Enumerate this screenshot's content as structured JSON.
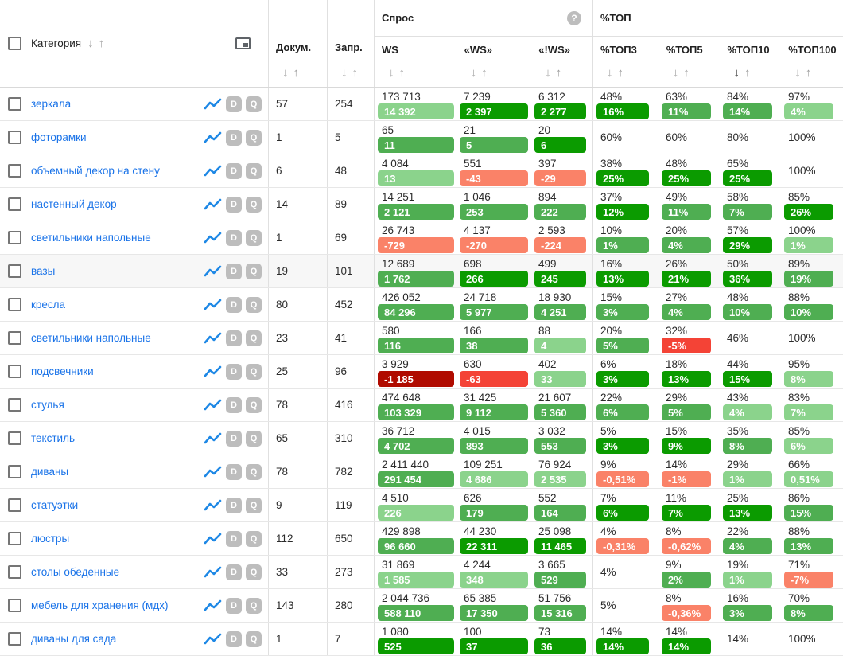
{
  "header": {
    "category": "Категория",
    "docs": "Докум.",
    "queries": "Запр.",
    "demand_group": "Спрос",
    "top_group": "%ТОП",
    "sub_columns": [
      "WS",
      "«WS»",
      "«!WS»",
      "%ТОП3",
      "%ТОП5",
      "%ТОП10",
      "%ТОП100"
    ],
    "sort_down": "↓",
    "sort_up": "↑",
    "active_sort_column": "%ТОП10",
    "help_icon": "?"
  },
  "row_buttons": {
    "chart": "chart-line",
    "d": "D",
    "q": "Q"
  },
  "colors": {
    "badge_green_light": "#8bd38c",
    "badge_green_mid": "#4fae52",
    "badge_green_dark": "#0b9b00",
    "badge_salmon": "#fa8268",
    "badge_red": "#f44336",
    "badge_dark_red": "#b00b00",
    "link_blue": "#1a73e8",
    "chart_icon_blue": "#1e88e5",
    "button_gray": "#bdbdbd"
  },
  "rows": [
    {
      "category": "зеркала",
      "docs": "57",
      "queries": "254",
      "highlight": false,
      "metrics": [
        {
          "v": "173 713",
          "b": "14 392",
          "t": "light"
        },
        {
          "v": "7 239",
          "b": "2 397",
          "t": "dark"
        },
        {
          "v": "6 312",
          "b": "2 277",
          "t": "dark"
        },
        {
          "v": "48%",
          "b": "16%",
          "t": "dark"
        },
        {
          "v": "63%",
          "b": "11%",
          "t": "mid"
        },
        {
          "v": "84%",
          "b": "14%",
          "t": "mid"
        },
        {
          "v": "97%",
          "b": "4%",
          "t": "light"
        }
      ]
    },
    {
      "category": "фоторамки",
      "docs": "1",
      "queries": "5",
      "highlight": false,
      "metrics": [
        {
          "v": "65",
          "b": "11",
          "t": "mid"
        },
        {
          "v": "21",
          "b": "5",
          "t": "mid"
        },
        {
          "v": "20",
          "b": "6",
          "t": "dark"
        },
        {
          "v": "60%",
          "b": null
        },
        {
          "v": "60%",
          "b": null
        },
        {
          "v": "80%",
          "b": null
        },
        {
          "v": "100%",
          "b": null
        }
      ]
    },
    {
      "category": "объемный декор на стену",
      "docs": "6",
      "queries": "48",
      "highlight": false,
      "metrics": [
        {
          "v": "4 084",
          "b": "13",
          "t": "light"
        },
        {
          "v": "551",
          "b": "-43",
          "t": "salmon"
        },
        {
          "v": "397",
          "b": "-29",
          "t": "salmon"
        },
        {
          "v": "38%",
          "b": "25%",
          "t": "dark"
        },
        {
          "v": "48%",
          "b": "25%",
          "t": "dark"
        },
        {
          "v": "65%",
          "b": "25%",
          "t": "dark"
        },
        {
          "v": "100%",
          "b": null
        }
      ]
    },
    {
      "category": "настенный декор",
      "docs": "14",
      "queries": "89",
      "highlight": false,
      "metrics": [
        {
          "v": "14 251",
          "b": "2 121",
          "t": "mid"
        },
        {
          "v": "1 046",
          "b": "253",
          "t": "mid"
        },
        {
          "v": "894",
          "b": "222",
          "t": "mid"
        },
        {
          "v": "37%",
          "b": "12%",
          "t": "dark"
        },
        {
          "v": "49%",
          "b": "11%",
          "t": "mid"
        },
        {
          "v": "58%",
          "b": "7%",
          "t": "mid"
        },
        {
          "v": "85%",
          "b": "26%",
          "t": "dark"
        }
      ]
    },
    {
      "category": "светильники напольные",
      "docs": "1",
      "queries": "69",
      "highlight": false,
      "metrics": [
        {
          "v": "26 743",
          "b": "-729",
          "t": "salmon"
        },
        {
          "v": "4 137",
          "b": "-270",
          "t": "salmon"
        },
        {
          "v": "2 593",
          "b": "-224",
          "t": "salmon"
        },
        {
          "v": "10%",
          "b": "1%",
          "t": "mid"
        },
        {
          "v": "20%",
          "b": "4%",
          "t": "mid"
        },
        {
          "v": "57%",
          "b": "29%",
          "t": "dark"
        },
        {
          "v": "100%",
          "b": "1%",
          "t": "light"
        }
      ]
    },
    {
      "category": "вазы",
      "docs": "19",
      "queries": "101",
      "highlight": true,
      "metrics": [
        {
          "v": "12 689",
          "b": "1 762",
          "t": "mid"
        },
        {
          "v": "698",
          "b": "266",
          "t": "dark"
        },
        {
          "v": "499",
          "b": "245",
          "t": "dark"
        },
        {
          "v": "16%",
          "b": "13%",
          "t": "dark"
        },
        {
          "v": "26%",
          "b": "21%",
          "t": "dark"
        },
        {
          "v": "50%",
          "b": "36%",
          "t": "dark"
        },
        {
          "v": "89%",
          "b": "19%",
          "t": "mid"
        }
      ]
    },
    {
      "category": "кресла",
      "docs": "80",
      "queries": "452",
      "highlight": false,
      "metrics": [
        {
          "v": "426 052",
          "b": "84 296",
          "t": "mid"
        },
        {
          "v": "24 718",
          "b": "5 977",
          "t": "mid"
        },
        {
          "v": "18 930",
          "b": "4 251",
          "t": "mid"
        },
        {
          "v": "15%",
          "b": "3%",
          "t": "mid"
        },
        {
          "v": "27%",
          "b": "4%",
          "t": "mid"
        },
        {
          "v": "48%",
          "b": "10%",
          "t": "mid"
        },
        {
          "v": "88%",
          "b": "10%",
          "t": "mid"
        }
      ]
    },
    {
      "category": "светильники напольные",
      "docs": "23",
      "queries": "41",
      "highlight": false,
      "metrics": [
        {
          "v": "580",
          "b": "116",
          "t": "mid"
        },
        {
          "v": "166",
          "b": "38",
          "t": "mid"
        },
        {
          "v": "88",
          "b": "4",
          "t": "light"
        },
        {
          "v": "20%",
          "b": "5%",
          "t": "mid"
        },
        {
          "v": "32%",
          "b": "-5%",
          "t": "red"
        },
        {
          "v": "46%",
          "b": null
        },
        {
          "v": "100%",
          "b": null
        }
      ]
    },
    {
      "category": "подсвечники",
      "docs": "25",
      "queries": "96",
      "highlight": false,
      "metrics": [
        {
          "v": "3 929",
          "b": "-1 185",
          "t": "darkred"
        },
        {
          "v": "630",
          "b": "-63",
          "t": "red"
        },
        {
          "v": "402",
          "b": "33",
          "t": "light"
        },
        {
          "v": "6%",
          "b": "3%",
          "t": "dark"
        },
        {
          "v": "18%",
          "b": "13%",
          "t": "dark"
        },
        {
          "v": "44%",
          "b": "15%",
          "t": "dark"
        },
        {
          "v": "95%",
          "b": "8%",
          "t": "light"
        }
      ]
    },
    {
      "category": "стулья",
      "docs": "78",
      "queries": "416",
      "highlight": false,
      "metrics": [
        {
          "v": "474 648",
          "b": "103 329",
          "t": "mid"
        },
        {
          "v": "31 425",
          "b": "9 112",
          "t": "mid"
        },
        {
          "v": "21 607",
          "b": "5 360",
          "t": "mid"
        },
        {
          "v": "22%",
          "b": "6%",
          "t": "mid"
        },
        {
          "v": "29%",
          "b": "5%",
          "t": "mid"
        },
        {
          "v": "43%",
          "b": "4%",
          "t": "light"
        },
        {
          "v": "83%",
          "b": "7%",
          "t": "light"
        }
      ]
    },
    {
      "category": "текстиль",
      "docs": "65",
      "queries": "310",
      "highlight": false,
      "metrics": [
        {
          "v": "36 712",
          "b": "4 702",
          "t": "mid"
        },
        {
          "v": "4 015",
          "b": "893",
          "t": "mid"
        },
        {
          "v": "3 032",
          "b": "553",
          "t": "mid"
        },
        {
          "v": "5%",
          "b": "3%",
          "t": "dark"
        },
        {
          "v": "15%",
          "b": "9%",
          "t": "dark"
        },
        {
          "v": "35%",
          "b": "8%",
          "t": "mid"
        },
        {
          "v": "85%",
          "b": "6%",
          "t": "light"
        }
      ]
    },
    {
      "category": "диваны",
      "docs": "78",
      "queries": "782",
      "highlight": false,
      "metrics": [
        {
          "v": "2 411 440",
          "b": "291 454",
          "t": "mid"
        },
        {
          "v": "109 251",
          "b": "4 686",
          "t": "light"
        },
        {
          "v": "76 924",
          "b": "2 535",
          "t": "light"
        },
        {
          "v": "9%",
          "b": "-0,51%",
          "t": "salmon"
        },
        {
          "v": "14%",
          "b": "-1%",
          "t": "salmon"
        },
        {
          "v": "29%",
          "b": "1%",
          "t": "light"
        },
        {
          "v": "66%",
          "b": "0,51%",
          "t": "light"
        }
      ]
    },
    {
      "category": "статуэтки",
      "docs": "9",
      "queries": "119",
      "highlight": false,
      "metrics": [
        {
          "v": "4 510",
          "b": "226",
          "t": "light"
        },
        {
          "v": "626",
          "b": "179",
          "t": "mid"
        },
        {
          "v": "552",
          "b": "164",
          "t": "mid"
        },
        {
          "v": "7%",
          "b": "6%",
          "t": "dark"
        },
        {
          "v": "11%",
          "b": "7%",
          "t": "dark"
        },
        {
          "v": "25%",
          "b": "13%",
          "t": "dark"
        },
        {
          "v": "86%",
          "b": "15%",
          "t": "mid"
        }
      ]
    },
    {
      "category": "люстры",
      "docs": "112",
      "queries": "650",
      "highlight": false,
      "metrics": [
        {
          "v": "429 898",
          "b": "96 660",
          "t": "mid"
        },
        {
          "v": "44 230",
          "b": "22 311",
          "t": "dark"
        },
        {
          "v": "25 098",
          "b": "11 465",
          "t": "dark"
        },
        {
          "v": "4%",
          "b": "-0,31%",
          "t": "salmon"
        },
        {
          "v": "8%",
          "b": "-0,62%",
          "t": "salmon"
        },
        {
          "v": "22%",
          "b": "4%",
          "t": "mid"
        },
        {
          "v": "88%",
          "b": "13%",
          "t": "mid"
        }
      ]
    },
    {
      "category": "столы обеденные",
      "docs": "33",
      "queries": "273",
      "highlight": false,
      "metrics": [
        {
          "v": "31 869",
          "b": "1 585",
          "t": "light"
        },
        {
          "v": "4 244",
          "b": "348",
          "t": "light"
        },
        {
          "v": "3 665",
          "b": "529",
          "t": "mid"
        },
        {
          "v": "4%",
          "b": null
        },
        {
          "v": "9%",
          "b": "2%",
          "t": "mid"
        },
        {
          "v": "19%",
          "b": "1%",
          "t": "light"
        },
        {
          "v": "71%",
          "b": "-7%",
          "t": "salmon"
        }
      ]
    },
    {
      "category": "мебель для хранения (мдх)",
      "docs": "143",
      "queries": "280",
      "highlight": false,
      "metrics": [
        {
          "v": "2 044 736",
          "b": "588 110",
          "t": "mid"
        },
        {
          "v": "65 385",
          "b": "17 350",
          "t": "mid"
        },
        {
          "v": "51 756",
          "b": "15 316",
          "t": "mid"
        },
        {
          "v": "5%",
          "b": null
        },
        {
          "v": "8%",
          "b": "-0,36%",
          "t": "salmon"
        },
        {
          "v": "16%",
          "b": "3%",
          "t": "mid"
        },
        {
          "v": "70%",
          "b": "8%",
          "t": "mid"
        }
      ]
    },
    {
      "category": "диваны для сада",
      "docs": "1",
      "queries": "7",
      "highlight": false,
      "metrics": [
        {
          "v": "1 080",
          "b": "525",
          "t": "dark"
        },
        {
          "v": "100",
          "b": "37",
          "t": "dark"
        },
        {
          "v": "73",
          "b": "36",
          "t": "dark"
        },
        {
          "v": "14%",
          "b": "14%",
          "t": "dark"
        },
        {
          "v": "14%",
          "b": "14%",
          "t": "dark"
        },
        {
          "v": "14%",
          "b": null
        },
        {
          "v": "100%",
          "b": null
        }
      ]
    }
  ]
}
